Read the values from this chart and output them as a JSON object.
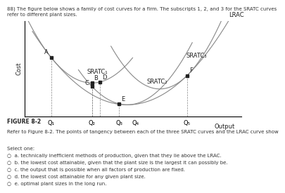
{
  "title_text": "88) The figure below shows a family of cost curves for a firm. The subscripts 1, 2, and 3 for the SRATC curves refer to different plant sizes.",
  "figure_label": "FIGURE 8-2",
  "question_text": "Refer to Figure 8-2. The points of tangency between each of the three SRATC curves and the LRAC curve show",
  "options": [
    "a. technically inefficient methods of production, given that they lie above the LRAC.",
    "b. the lowest cost attainable, given that the plant size is the largest it can possibly be.",
    "c. the output that is possible when all factors of production are fixed.",
    "d. the lowest cost attainable for any given plant size.",
    "e. optimal plant sizes in the long run."
  ],
  "xlabel": "Output",
  "ylabel": "Cost",
  "xtick_labels": [
    "Q₁",
    "Q₂",
    "Q₃",
    "Q₄",
    "Q₅"
  ],
  "xtick_positions": [
    1.0,
    2.5,
    3.5,
    4.1,
    6.0
  ],
  "curve_color": "#888888",
  "point_color": "#222222",
  "background_color": "#ffffff",
  "lrac_label": "LRAC",
  "sratc1_label": "SRATC₁",
  "sratc2_label": "SRATC₂",
  "sratc3_label": "SRATC₃",
  "point_labels": [
    "A",
    "B",
    "C",
    "D",
    "E",
    "F"
  ],
  "fontsize_tiny": 5,
  "fontsize_small": 6,
  "fontsize_axis": 6,
  "fontsize_curve": 6,
  "lrac_a": 0.1,
  "lrac_xmin": 3.8,
  "lrac_yoff": 0.5,
  "a1": 0.28,
  "m1": 2.5,
  "c1": 0.91,
  "a2": 0.18,
  "m2": 3.8,
  "c2": 0.5,
  "a3": 0.22,
  "m3": 5.0,
  "c3": 0.72,
  "xlim": [
    0.0,
    8.0
  ],
  "ylim": [
    0.3,
    1.9
  ]
}
